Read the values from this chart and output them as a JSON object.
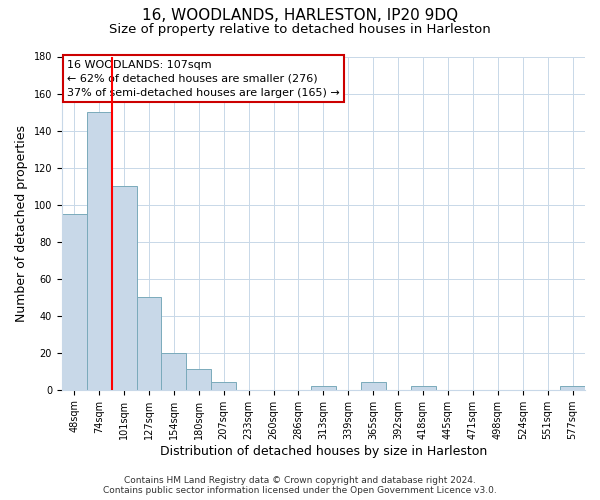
{
  "title": "16, WOODLANDS, HARLESTON, IP20 9DQ",
  "subtitle": "Size of property relative to detached houses in Harleston",
  "xlabel": "Distribution of detached houses by size in Harleston",
  "ylabel": "Number of detached properties",
  "bar_labels": [
    "48sqm",
    "74sqm",
    "101sqm",
    "127sqm",
    "154sqm",
    "180sqm",
    "207sqm",
    "233sqm",
    "260sqm",
    "286sqm",
    "313sqm",
    "339sqm",
    "365sqm",
    "392sqm",
    "418sqm",
    "445sqm",
    "471sqm",
    "498sqm",
    "524sqm",
    "551sqm",
    "577sqm"
  ],
  "bar_values": [
    95,
    150,
    110,
    50,
    20,
    11,
    4,
    0,
    0,
    0,
    2,
    0,
    4,
    0,
    2,
    0,
    0,
    0,
    0,
    0,
    2
  ],
  "bar_color": "#c8d8e8",
  "bar_edge_color": "#7aaabb",
  "red_line_x": 1.5,
  "annotation_line1": "16 WOODLANDS: 107sqm",
  "annotation_line2": "← 62% of detached houses are smaller (276)",
  "annotation_line3": "37% of semi-detached houses are larger (165) →",
  "annotation_box_color": "#ffffff",
  "annotation_box_edge_color": "#cc0000",
  "ylim": [
    0,
    180
  ],
  "yticks": [
    0,
    20,
    40,
    60,
    80,
    100,
    120,
    140,
    160,
    180
  ],
  "footer_line1": "Contains HM Land Registry data © Crown copyright and database right 2024.",
  "footer_line2": "Contains public sector information licensed under the Open Government Licence v3.0.",
  "background_color": "#ffffff",
  "grid_color": "#c8d8e8",
  "title_fontsize": 11,
  "subtitle_fontsize": 9.5,
  "axis_label_fontsize": 9,
  "tick_fontsize": 7,
  "footer_fontsize": 6.5
}
